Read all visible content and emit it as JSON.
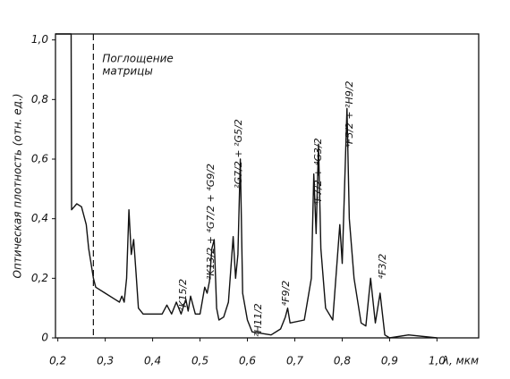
{
  "chart_data": {
    "type": "line",
    "y_label": "Оптическая плотность (отн. ед.)",
    "x_label": "λ, мкм",
    "xlim": [
      0.195,
      1.088
    ],
    "ylim": [
      0,
      1.02
    ],
    "xticks": [
      {
        "value": 0.2,
        "label": "0,2"
      },
      {
        "value": 0.3,
        "label": "0,3"
      },
      {
        "value": 0.4,
        "label": "0,4"
      },
      {
        "value": 0.5,
        "label": "0,5"
      },
      {
        "value": 0.6,
        "label": "0,6"
      },
      {
        "value": 0.7,
        "label": "0,7"
      },
      {
        "value": 0.8,
        "label": "0,8"
      },
      {
        "value": 0.9,
        "label": "0,9"
      },
      {
        "value": 1.0,
        "label": "1,0"
      }
    ],
    "yticks": [
      0,
      {
        "value": 0.2,
        "label": "0,2"
      },
      {
        "value": 0.4,
        "label": "0,4"
      },
      {
        "value": 0.6,
        "label": "0,6"
      },
      {
        "value": 0.8,
        "label": "0,8"
      },
      {
        "value": 1.0,
        "label": "1,0"
      }
    ],
    "matrix_edge": {
      "x": 0.275,
      "label": [
        "Поглощение",
        "матрицы"
      ]
    },
    "x": [
      0.195,
      0.228,
      0.229,
      0.24,
      0.25,
      0.26,
      0.265,
      0.275,
      0.28,
      0.3,
      0.32,
      0.33,
      0.335,
      0.34,
      0.345,
      0.35,
      0.355,
      0.36,
      0.365,
      0.37,
      0.38,
      0.42,
      0.43,
      0.44,
      0.45,
      0.46,
      0.47,
      0.475,
      0.48,
      0.49,
      0.5,
      0.51,
      0.515,
      0.52,
      0.525,
      0.53,
      0.535,
      0.54,
      0.55,
      0.56,
      0.57,
      0.575,
      0.58,
      0.585,
      0.59,
      0.6,
      0.61,
      0.65,
      0.67,
      0.68,
      0.685,
      0.69,
      0.72,
      0.735,
      0.74,
      0.745,
      0.75,
      0.755,
      0.765,
      0.78,
      0.795,
      0.8,
      0.81,
      0.815,
      0.825,
      0.84,
      0.85,
      0.86,
      0.87,
      0.88,
      0.89,
      0.9,
      0.94,
      1.0
    ],
    "series": [
      {
        "color": "#111111",
        "values": [
          1.02,
          1.02,
          0.43,
          0.45,
          0.44,
          0.38,
          0.3,
          0.2,
          0.17,
          0.15,
          0.13,
          0.12,
          0.14,
          0.12,
          0.2,
          0.43,
          0.28,
          0.33,
          0.22,
          0.1,
          0.08,
          0.08,
          0.11,
          0.08,
          0.12,
          0.08,
          0.13,
          0.09,
          0.14,
          0.08,
          0.08,
          0.17,
          0.15,
          0.19,
          0.3,
          0.33,
          0.1,
          0.06,
          0.07,
          0.12,
          0.34,
          0.2,
          0.28,
          0.6,
          0.15,
          0.06,
          0.02,
          0.01,
          0.03,
          0.07,
          0.1,
          0.05,
          0.06,
          0.2,
          0.55,
          0.35,
          0.65,
          0.3,
          0.1,
          0.06,
          0.38,
          0.25,
          0.77,
          0.4,
          0.2,
          0.05,
          0.04,
          0.2,
          0.05,
          0.15,
          0.01,
          0,
          0.01,
          0
        ]
      }
    ],
    "annotations": [
      "²K15/2",
      "²K13/2 + ⁴G7/2 + ⁴G9/2",
      "²G7/2 + ²G5/2",
      "²H11/2",
      "⁴F9/2",
      "⁴F7/2 + ⁴G3/2",
      "⁴F5/2 + ²H9/2",
      "⁴F3/2"
    ]
  }
}
